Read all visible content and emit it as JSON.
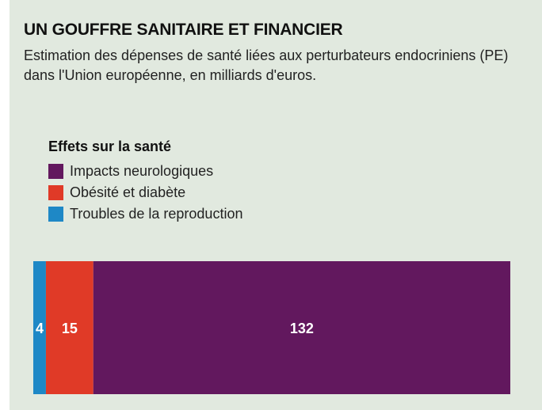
{
  "header": {
    "title": "UN GOUFFRE SANITAIRE ET FINANCIER",
    "subtitle": "Estimation des dépenses de santé liées aux perturbateurs endocriniens (PE) dans l'Union européenne, en milliards d'euros."
  },
  "legend": {
    "title": "Effets sur la santé",
    "items": [
      {
        "label": "Impacts neurologiques",
        "color": "#62185e"
      },
      {
        "label": "Obésité et diabète",
        "color": "#e03a27"
      },
      {
        "label": "Troubles de la reproduction",
        "color": "#1e88c6"
      }
    ]
  },
  "chart_data": {
    "type": "bar",
    "orientation": "stacked-horizontal",
    "title": "UN GOUFFRE SANITAIRE ET FINANCIER",
    "subtitle": "Estimation des dépenses de santé liées aux perturbateurs endocriniens (PE) dans l'Union européenne, en milliards d'euros.",
    "unit": "milliards d'euros",
    "series": [
      {
        "name": "Troubles de la reproduction",
        "value": 4,
        "label": "4",
        "color": "#1e88c6"
      },
      {
        "name": "Obésité et diabète",
        "value": 15,
        "label": "15",
        "color": "#e03a27"
      },
      {
        "name": "Impacts neurologiques",
        "value": 132,
        "label": "132",
        "color": "#62185e"
      }
    ],
    "grid": false,
    "legend_position": "top-left"
  }
}
